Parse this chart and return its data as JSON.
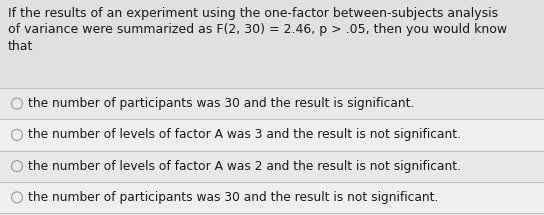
{
  "question_line1": "If the results of an experiment using the one-factor between-subjects analysis",
  "question_line2": "of variance were summarized as F(2, 30) = 2.46, p > .05, then you would know",
  "question_line3": "that",
  "options": [
    "the number of participants was 30 and the result is significant.",
    "the number of levels of factor A was 3 and the result is not significant.",
    "the number of levels of factor A was 2 and the result is not significant.",
    "the number of participants was 30 and the result is not significant."
  ],
  "bg_color": "#e8e8e8",
  "option_bg": "#ebebeb",
  "divider_color": "#bbbbbb",
  "text_color": "#1a1a1a",
  "circle_color": "#999999",
  "question_fontsize": 9.0,
  "option_fontsize": 8.8
}
